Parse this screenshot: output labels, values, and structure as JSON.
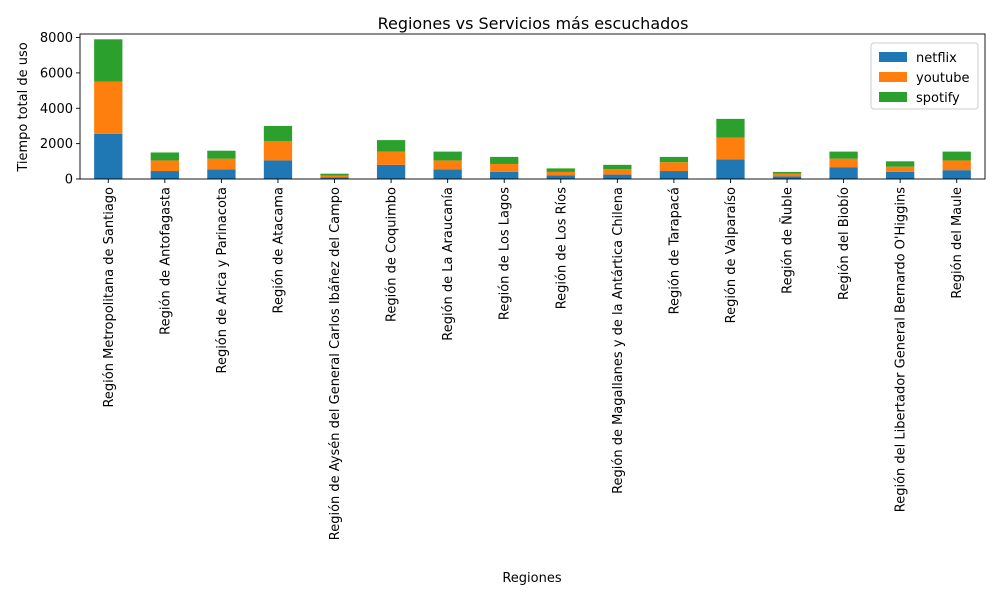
{
  "chart_data": {
    "type": "bar",
    "stacked": true,
    "title": "Regiones vs Servicios más escuchados",
    "xlabel": "Regiones",
    "ylabel": "Tiempo total de uso",
    "ylim": [
      0,
      8200
    ],
    "yticks": [
      0,
      2000,
      4000,
      6000,
      8000
    ],
    "grid": false,
    "legend_position": "top-right",
    "categories": [
      "Región Metropolitana de Santiago",
      "Región de Antofagasta",
      "Región de Arica y Parinacota",
      "Región de Atacama",
      "Región de Aysén del General Carlos Ibáñez del Campo",
      "Región de Coquimbo",
      "Región de La Araucanía",
      "Región de Los Lagos",
      "Región de Los Ríos",
      "Región de Magallanes y de la Antártica Chilena",
      "Región de Tarapacá",
      "Región de Valparaíso",
      "Región de Ñuble",
      "Región del Biobío",
      "Región del Libertador General Bernardo O'Higgins",
      "Región del Maule"
    ],
    "series": [
      {
        "name": "netflix",
        "color": "#1f77b4",
        "values": [
          2550,
          450,
          550,
          1050,
          100,
          800,
          550,
          400,
          200,
          250,
          450,
          1100,
          150,
          650,
          400,
          500
        ]
      },
      {
        "name": "youtube",
        "color": "#ff7f0e",
        "values": [
          2950,
          600,
          600,
          1100,
          100,
          750,
          500,
          450,
          200,
          300,
          500,
          1250,
          150,
          500,
          300,
          550
        ]
      },
      {
        "name": "spotify",
        "color": "#2ca02c",
        "values": [
          2400,
          450,
          450,
          850,
          100,
          650,
          500,
          400,
          200,
          250,
          300,
          1050,
          100,
          400,
          300,
          500
        ]
      }
    ]
  }
}
